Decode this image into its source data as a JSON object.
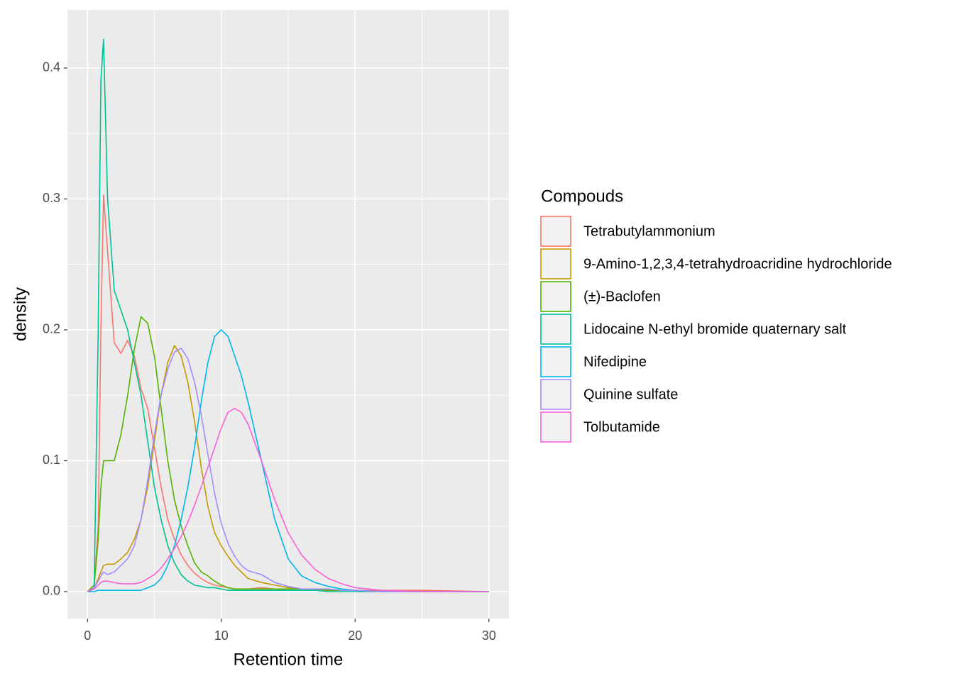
{
  "chart_data": {
    "type": "line",
    "x_label": "Retention time",
    "y_label": "density",
    "legend_title": "Compouds",
    "legend_position": "right",
    "xlim": [
      -1.5,
      31.5
    ],
    "ylim": [
      -0.0206,
      0.4444
    ],
    "xticks": [
      0,
      10,
      20,
      30
    ],
    "yticks": [
      {
        "value": 0,
        "label": "0.0"
      },
      {
        "value": 0.1,
        "label": "0.1"
      },
      {
        "value": 0.2,
        "label": "0.2"
      },
      {
        "value": 0.3,
        "label": "0.3"
      },
      {
        "value": 0.4,
        "label": "0.4"
      }
    ],
    "grid": true,
    "x": [
      0,
      0.5,
      0.8,
      1,
      1.2,
      1.5,
      2,
      2.5,
      3,
      3.5,
      4,
      4.5,
      5,
      5.5,
      6,
      6.5,
      7,
      7.5,
      8,
      8.5,
      9,
      9.5,
      10,
      10.5,
      11,
      11.5,
      12,
      13,
      14,
      15,
      16,
      17,
      18,
      19,
      20,
      22,
      25,
      30
    ],
    "series": [
      {
        "name": "Tetrabutylammonium",
        "color": "#F8766D",
        "values": [
          0,
          0.005,
          0.05,
          0.2,
          0.303,
          0.26,
          0.19,
          0.182,
          0.192,
          0.18,
          0.155,
          0.14,
          0.11,
          0.08,
          0.055,
          0.04,
          0.028,
          0.02,
          0.014,
          0.01,
          0.007,
          0.005,
          0.004,
          0.003,
          0.002,
          0.002,
          0.002,
          0.003,
          0.002,
          0.001,
          0.001,
          0.001,
          0.001,
          0.001,
          0.001,
          0.001,
          0.001,
          0
        ]
      },
      {
        "name": "9-Amino-1,2,3,4-tetrahydroacridine hydrochloride",
        "color": "#C49A00",
        "values": [
          0,
          0.003,
          0.01,
          0.015,
          0.02,
          0.021,
          0.021,
          0.025,
          0.03,
          0.04,
          0.055,
          0.08,
          0.115,
          0.15,
          0.175,
          0.188,
          0.18,
          0.16,
          0.13,
          0.095,
          0.065,
          0.045,
          0.035,
          0.027,
          0.02,
          0.015,
          0.01,
          0.007,
          0.005,
          0.003,
          0.002,
          0.002,
          0.001,
          0.001,
          0.001,
          0,
          0,
          0
        ]
      },
      {
        "name": "(±)-Baclofen",
        "color": "#53B400",
        "values": [
          0,
          0.005,
          0.04,
          0.08,
          0.1,
          0.1,
          0.1,
          0.12,
          0.15,
          0.185,
          0.21,
          0.205,
          0.18,
          0.14,
          0.1,
          0.07,
          0.05,
          0.035,
          0.022,
          0.015,
          0.012,
          0.008,
          0.005,
          0.003,
          0.002,
          0.002,
          0.002,
          0.002,
          0.002,
          0.002,
          0.002,
          0.002,
          0.001,
          0.001,
          0.001,
          0,
          0,
          0
        ]
      },
      {
        "name": "Lidocaine N-ethyl bromide quaternary salt",
        "color": "#00C094",
        "values": [
          0,
          0.002,
          0.2,
          0.39,
          0.422,
          0.3,
          0.23,
          0.215,
          0.2,
          0.175,
          0.15,
          0.115,
          0.08,
          0.055,
          0.035,
          0.022,
          0.013,
          0.008,
          0.005,
          0.004,
          0.003,
          0.003,
          0.002,
          0.001,
          0.001,
          0.001,
          0.001,
          0.001,
          0.001,
          0.001,
          0.001,
          0.001,
          0,
          0,
          0,
          0,
          0,
          0
        ]
      },
      {
        "name": "Nifedipine",
        "color": "#00B6EB",
        "values": [
          0,
          0,
          0.001,
          0.001,
          0.001,
          0.001,
          0.001,
          0.001,
          0.001,
          0.001,
          0.001,
          0.003,
          0.005,
          0.01,
          0.02,
          0.035,
          0.055,
          0.08,
          0.11,
          0.145,
          0.175,
          0.195,
          0.2,
          0.195,
          0.18,
          0.165,
          0.145,
          0.1,
          0.055,
          0.025,
          0.012,
          0.007,
          0.004,
          0.002,
          0.001,
          0,
          0,
          0
        ]
      },
      {
        "name": "Quinine sulfate",
        "color": "#A58AFF",
        "values": [
          0,
          0.003,
          0.008,
          0.012,
          0.015,
          0.013,
          0.015,
          0.02,
          0.025,
          0.035,
          0.055,
          0.085,
          0.12,
          0.15,
          0.17,
          0.183,
          0.186,
          0.178,
          0.16,
          0.135,
          0.105,
          0.075,
          0.052,
          0.037,
          0.027,
          0.02,
          0.016,
          0.013,
          0.007,
          0.004,
          0.002,
          0.002,
          0.002,
          0.001,
          0.001,
          0,
          0,
          0
        ]
      },
      {
        "name": "Tolbutamide",
        "color": "#FB61D7",
        "values": [
          0,
          0.002,
          0.005,
          0.007,
          0.008,
          0.008,
          0.007,
          0.006,
          0.006,
          0.006,
          0.007,
          0.01,
          0.013,
          0.018,
          0.025,
          0.033,
          0.042,
          0.053,
          0.066,
          0.08,
          0.095,
          0.11,
          0.125,
          0.137,
          0.14,
          0.137,
          0.128,
          0.1,
          0.07,
          0.045,
          0.028,
          0.017,
          0.01,
          0.006,
          0.003,
          0.001,
          0,
          0
        ]
      }
    ]
  }
}
